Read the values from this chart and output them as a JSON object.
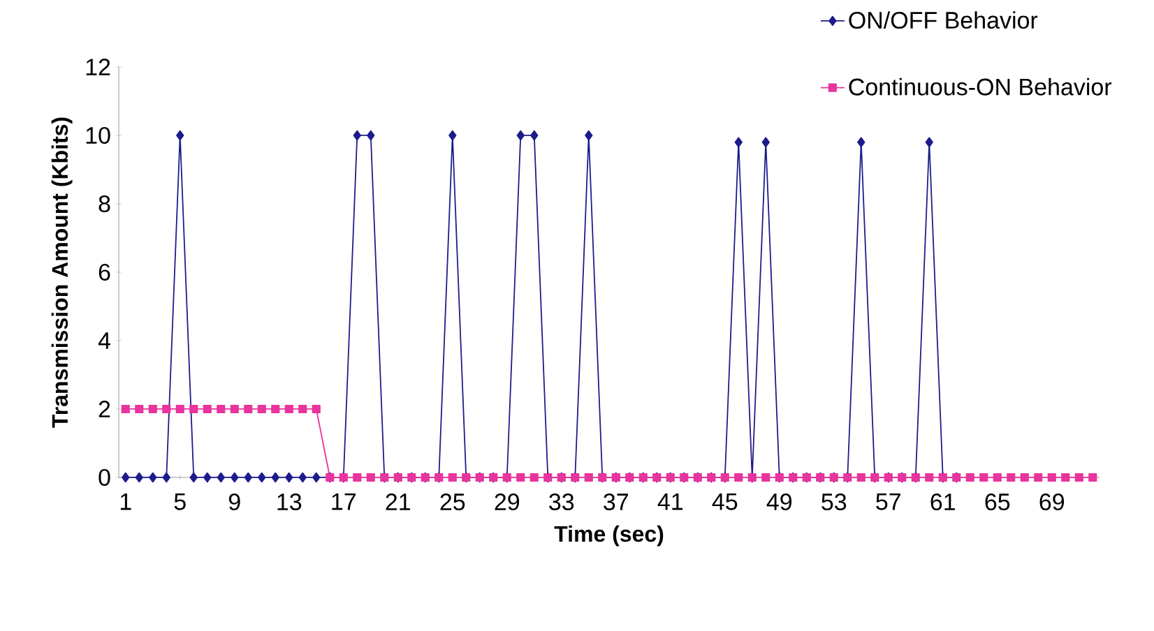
{
  "chart_data": {
    "type": "line",
    "xlabel": "Time (sec)",
    "ylabel": "Transmission Amount (Kbits)",
    "categories": [
      "1",
      null,
      null,
      null,
      "5",
      null,
      null,
      null,
      "9",
      null,
      null,
      null,
      "13",
      null,
      null,
      null,
      "17",
      null,
      null,
      null,
      "21",
      null,
      null,
      null,
      "25",
      null,
      null,
      null,
      "29",
      null,
      null,
      null,
      "33",
      null,
      null,
      null,
      "37",
      null,
      null,
      null,
      "41",
      null,
      null,
      null,
      "45",
      null,
      null,
      null,
      "49",
      null,
      null,
      null,
      "53",
      null,
      null,
      null,
      "57",
      null,
      null,
      null,
      "61",
      null,
      null,
      null,
      "65",
      null,
      null,
      null,
      "69",
      null,
      null,
      null
    ],
    "series": [
      {
        "name": "ON/OFF Behavior",
        "color": "#1c1c8c",
        "marker": "diamond",
        "values": [
          0,
          0,
          0,
          0,
          10,
          0,
          0,
          0,
          0,
          0,
          0,
          0,
          0,
          0,
          0,
          0,
          0,
          10,
          10,
          0,
          0,
          0,
          0,
          0,
          10,
          0,
          0,
          0,
          0,
          10,
          10,
          0,
          0,
          0,
          10,
          0,
          0,
          0,
          0,
          0,
          0,
          0,
          0,
          0,
          0,
          9.8,
          0,
          9.8,
          0,
          0,
          0,
          0,
          0,
          0,
          9.8,
          0,
          0,
          0,
          0,
          9.8,
          0,
          0,
          null,
          null,
          null,
          null,
          null,
          null,
          null,
          null,
          null,
          null
        ]
      },
      {
        "name": "Continuous-ON Behavior",
        "color": "#e8349c",
        "marker": "square",
        "values": [
          2,
          2,
          2,
          2,
          2,
          2,
          2,
          2,
          2,
          2,
          2,
          2,
          2,
          2,
          2,
          0,
          0,
          0,
          0,
          0,
          0,
          0,
          0,
          0,
          0,
          0,
          0,
          0,
          0,
          0,
          0,
          0,
          0,
          0,
          0,
          0,
          0,
          0,
          0,
          0,
          0,
          0,
          0,
          0,
          0,
          0,
          0,
          0,
          0,
          0,
          0,
          0,
          0,
          0,
          0,
          0,
          0,
          0,
          0,
          0,
          0,
          0,
          0,
          0,
          0,
          0,
          0,
          0,
          0,
          0,
          0,
          0
        ]
      }
    ],
    "ylim": [
      0,
      12
    ],
    "yticks": [
      0,
      2,
      4,
      6,
      8,
      10,
      12
    ],
    "legend": "top right"
  }
}
